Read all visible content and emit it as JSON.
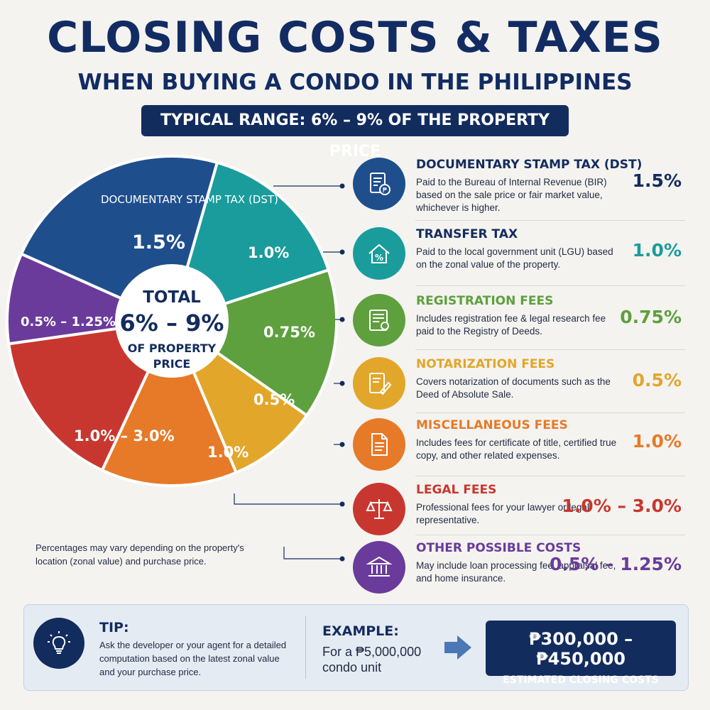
{
  "title": "CLOSING COSTS & TAXES",
  "subtitle": "WHEN BUYING A CONDO IN THE PHILIPPINES",
  "range_banner": "TYPICAL RANGE: 6% – 9% OF THE PROPERTY PRICE",
  "center": {
    "line1": "TOTAL",
    "line2": "6% – 9%",
    "line3": "OF PROPERTY",
    "line4": "PRICE"
  },
  "note": "Percentages may vary depending on the property's location (zonal value) and purchase price.",
  "chart_data": {
    "type": "pie",
    "title": "CLOSING COSTS & TAXES",
    "slices": [
      {
        "label": "DOCUMENTARY STAMP TAX (DST)",
        "value_label": "1.5%",
        "value": 1.5,
        "color": "#1f4e8c"
      },
      {
        "label": "TRANSFER TAX",
        "value_label": "1.0%",
        "value": 1.0,
        "color": "#1a9c9c"
      },
      {
        "label": "REGISTRATION FEES",
        "value_label": "0.75%",
        "value": 0.75,
        "color": "#5e9f3e"
      },
      {
        "label": "NOTARIZATION FEES",
        "value_label": "0.5%",
        "value": 0.5,
        "color": "#e2a62a"
      },
      {
        "label": "MISCELLANEOUS FEES",
        "value_label": "1.0%",
        "value": 1.0,
        "color": "#e67a28"
      },
      {
        "label": "LEGAL FEES",
        "value_label": "1.0% – 3.0%",
        "value": 2.0,
        "color": "#c8372f"
      },
      {
        "label": "OTHER POSSIBLE COSTS",
        "value_label": "0.5% – 1.25%",
        "value": 0.875,
        "color": "#6a3b9b"
      }
    ]
  },
  "items": [
    {
      "name": "DOCUMENTARY STAMP TAX (DST)",
      "desc": "Paid to the Bureau of Internal Revenue (BIR) based on the sale price or fair market value, whichever is higher.",
      "pct": "1.5%",
      "color": "#1f4e8c",
      "name_color": "#132c5e",
      "pct_color": "#132c5e",
      "icon": "document-peso-icon"
    },
    {
      "name": "TRANSFER TAX",
      "desc": "Paid to the local government unit (LGU) based on the zonal value of the property.",
      "pct": "1.0%",
      "color": "#1a9c9c",
      "name_color": "#132c5e",
      "pct_color": "#1a9c9c",
      "icon": "house-percent-icon"
    },
    {
      "name": "REGISTRATION FEES",
      "desc": "Includes registration fee & legal research fee paid to the Registry of Deeds.",
      "pct": "0.75%",
      "color": "#5e9f3e",
      "name_color": "#5e9f3e",
      "pct_color": "#5e9f3e",
      "icon": "certificate-icon"
    },
    {
      "name": "NOTARIZATION FEES",
      "desc": "Covers notarization of documents such as the Deed of Absolute Sale.",
      "pct": "0.5%",
      "color": "#e2a62a",
      "name_color": "#e2a62a",
      "pct_color": "#e2a62a",
      "icon": "document-pen-icon"
    },
    {
      "name": "MISCELLANEOUS FEES",
      "desc": "Includes fees for certificate of title, certified true copy, and other related expenses.",
      "pct": "1.0%",
      "color": "#e67a28",
      "name_color": "#e67a28",
      "pct_color": "#e67a28",
      "icon": "document-icon"
    },
    {
      "name": "LEGAL FEES",
      "desc": "Professional fees for your lawyer or legal representative.",
      "pct": "1.0% – 3.0%",
      "color": "#c8372f",
      "name_color": "#c8372f",
      "pct_color": "#c8372f",
      "icon": "scales-icon"
    },
    {
      "name": "OTHER POSSIBLE COSTS",
      "desc": "May include loan processing fee, appraisal fee, and home insurance.",
      "pct": "0.5% – 1.25%",
      "color": "#6a3b9b",
      "name_color": "#6a3b9b",
      "pct_color": "#6a3b9b",
      "icon": "bank-icon"
    }
  ],
  "tip": {
    "title": "TIP:",
    "text": "Ask the developer or your agent for a detailed computation based on the latest zonal value and your purchase price."
  },
  "example": {
    "title": "EXAMPLE:",
    "text": "For a ₱5,000,000 condo unit",
    "amount": "₱300,000 – ₱450,000",
    "amount_label": "ESTIMATED CLOSING COSTS"
  }
}
